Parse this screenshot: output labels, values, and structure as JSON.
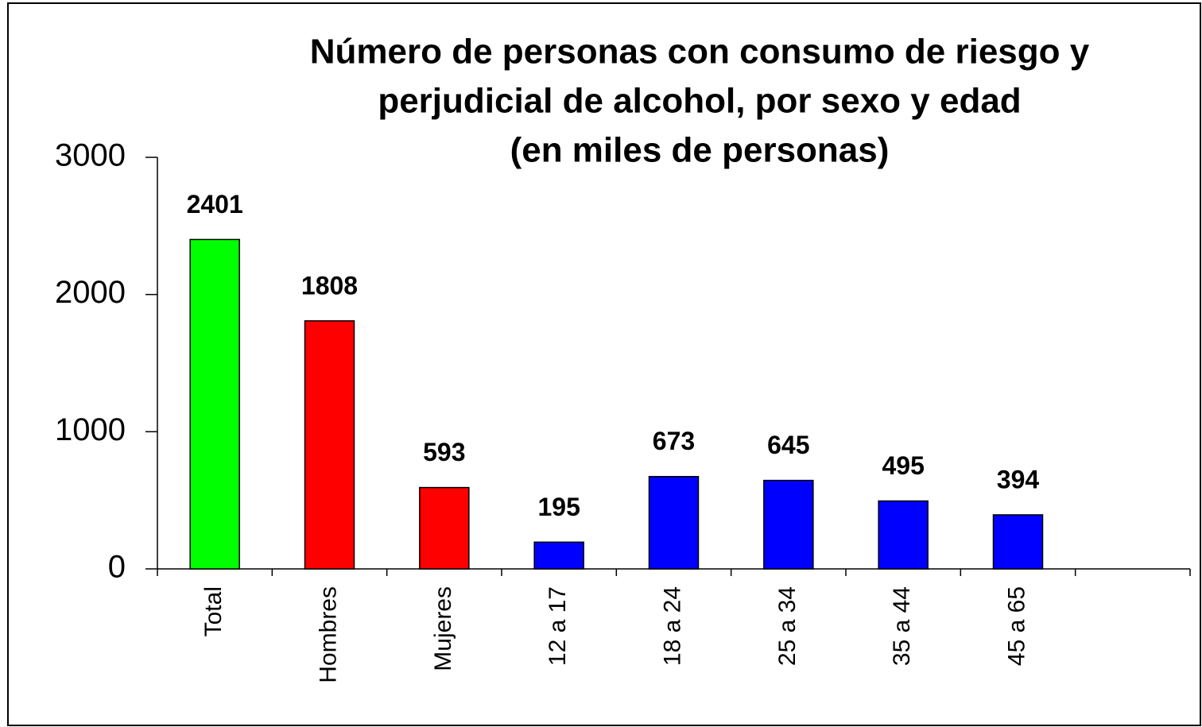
{
  "chart_data": {
    "type": "bar",
    "title": [
      "Número de personas con consumo de riesgo y",
      "perjudicial de alcohol, por sexo y edad",
      "(en miles de personas)"
    ],
    "categories": [
      "Total",
      "Hombres",
      "Mujeres",
      "12 a 17",
      "18 a 24",
      "25 a 34",
      "35 a 44",
      "45 a 65",
      null
    ],
    "values": [
      2401,
      1808,
      593,
      195,
      673,
      645,
      495,
      394,
      null
    ],
    "colors": [
      "#00ff00",
      "#ff0000",
      "#ff0000",
      "#0000ff",
      "#0000ff",
      "#0000ff",
      "#0000ff",
      "#0000ff",
      null
    ],
    "ylim": [
      0,
      3000
    ],
    "yticks": [
      0,
      1000,
      2000,
      3000
    ],
    "grid": false
  }
}
